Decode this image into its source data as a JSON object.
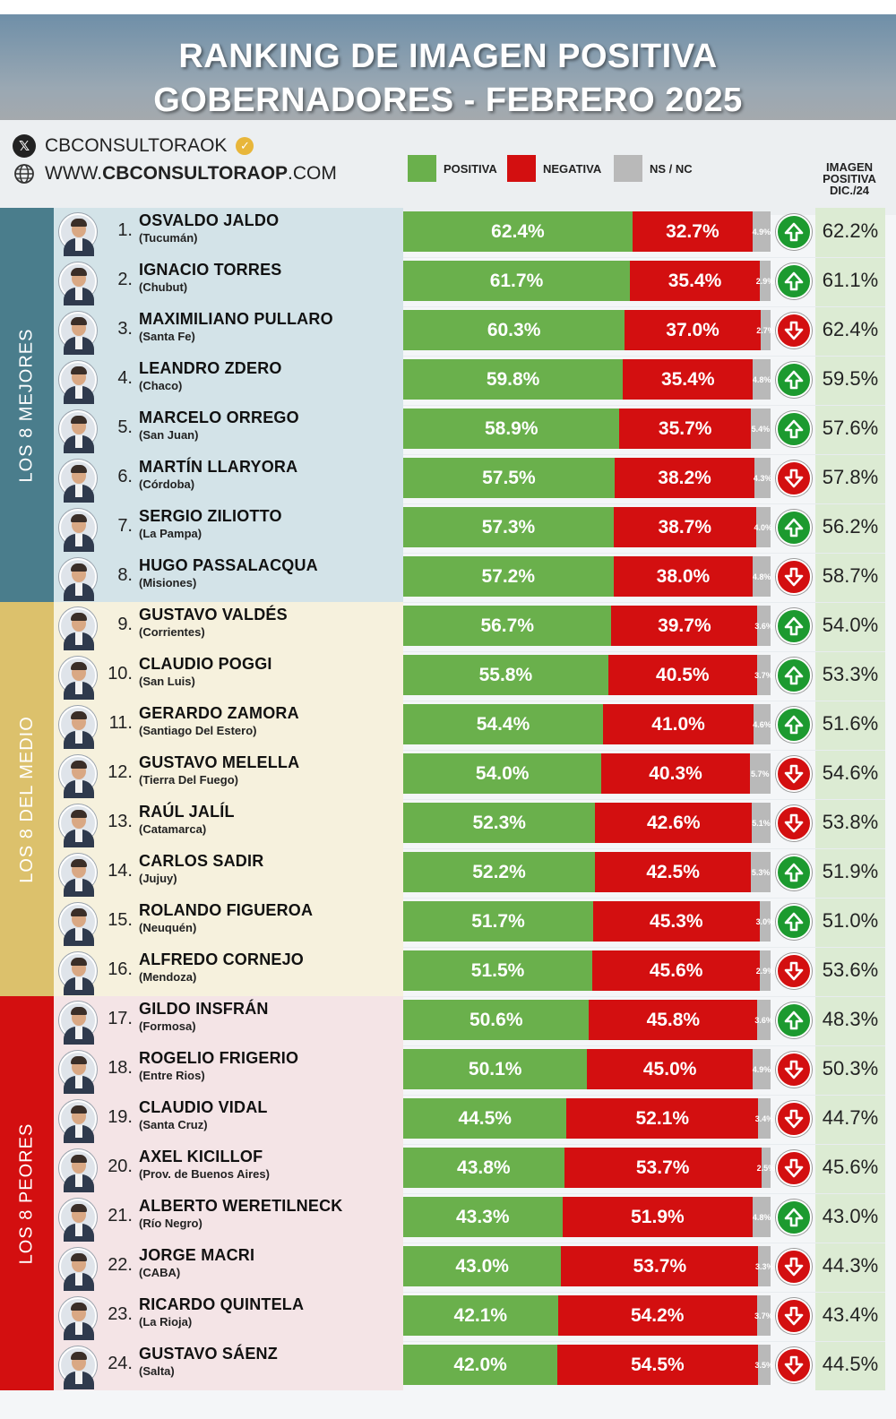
{
  "header": {
    "title_line1": "RANKING DE IMAGEN POSITIVA",
    "title_line2": "GOBERNADORES - FEBRERO 2025",
    "social_handle": "CBCONSULTORAOK",
    "website_prefix": "WWW.",
    "website_bold": "CBCONSULTORAOP",
    "website_suffix": ".COM"
  },
  "legend": {
    "positive": "POSITIVA",
    "negative": "NEGATIVA",
    "ns": "NS / NC"
  },
  "previous_header": [
    "IMAGEN",
    "POSITIVA",
    "DIC./24"
  ],
  "groups": [
    {
      "label": "LOS 8 MEJORES",
      "color": "#4a7d8c",
      "row_color": "#d3e3e8",
      "from": 0,
      "to": 8
    },
    {
      "label": "LOS 8 DEL MEDIO",
      "color": "#dcc16c",
      "row_color": "#f6f1dd",
      "from": 8,
      "to": 16
    },
    {
      "label": "LOS 8 PEORES",
      "color": "#d30f10",
      "row_color": "#f4e4e6",
      "from": 16,
      "to": 24
    }
  ],
  "colors": {
    "positive": "#6ab04c",
    "negative": "#d30f10",
    "ns": "#b9b9b9",
    "trend_up": "#1c9a2f",
    "trend_down": "#d30f10"
  },
  "chart_data": {
    "type": "bar",
    "stacked": true,
    "orientation": "horizontal",
    "title": "RANKING DE IMAGEN POSITIVA GOBERNADORES - FEBRERO 2025",
    "series_names": [
      "POSITIVA",
      "NEGATIVA",
      "NS / NC"
    ],
    "xlim": [
      0,
      100
    ],
    "rows": [
      {
        "rank": "1.",
        "name": "OSVALDO JALDO",
        "province": "(Tucumán)",
        "positive": 62.4,
        "positive_label": "62.4%",
        "negative": 32.7,
        "negative_label": "32.7%",
        "ns": 4.9,
        "ns_label": "4.9%",
        "trend": "up",
        "prev_label": "62.2%"
      },
      {
        "rank": "2.",
        "name": "IGNACIO TORRES",
        "province": "(Chubut)",
        "positive": 61.7,
        "positive_label": "61.7%",
        "negative": 35.4,
        "negative_label": "35.4%",
        "ns": 2.9,
        "ns_label": "2.9%",
        "trend": "up",
        "prev_label": "61.1%"
      },
      {
        "rank": "3.",
        "name": "MAXIMILIANO PULLARO",
        "province": "(Santa Fe)",
        "positive": 60.3,
        "positive_label": "60.3%",
        "negative": 37.0,
        "negative_label": "37.0%",
        "ns": 2.7,
        "ns_label": "2.7%",
        "trend": "down",
        "prev_label": "62.4%"
      },
      {
        "rank": "4.",
        "name": "LEANDRO ZDERO",
        "province": "(Chaco)",
        "positive": 59.8,
        "positive_label": "59.8%",
        "negative": 35.4,
        "negative_label": "35.4%",
        "ns": 4.8,
        "ns_label": "4.8%",
        "trend": "up",
        "prev_label": "59.5%"
      },
      {
        "rank": "5.",
        "name": "MARCELO ORREGO",
        "province": "(San Juan)",
        "positive": 58.9,
        "positive_label": "58.9%",
        "negative": 35.7,
        "negative_label": "35.7%",
        "ns": 5.4,
        "ns_label": "5.4%",
        "trend": "up",
        "prev_label": "57.6%"
      },
      {
        "rank": "6.",
        "name": "MARTÍN LLARYORA",
        "province": "(Córdoba)",
        "positive": 57.5,
        "positive_label": "57.5%",
        "negative": 38.2,
        "negative_label": "38.2%",
        "ns": 4.3,
        "ns_label": "4.3%",
        "trend": "down",
        "prev_label": "57.8%"
      },
      {
        "rank": "7.",
        "name": "SERGIO ZILIOTTO",
        "province": "(La Pampa)",
        "positive": 57.3,
        "positive_label": "57.3%",
        "negative": 38.7,
        "negative_label": "38.7%",
        "ns": 4.0,
        "ns_label": "4.0%",
        "trend": "up",
        "prev_label": "56.2%"
      },
      {
        "rank": "8.",
        "name": "HUGO PASSALACQUA",
        "province": "(Misiones)",
        "positive": 57.2,
        "positive_label": "57.2%",
        "negative": 38.0,
        "negative_label": "38.0%",
        "ns": 4.8,
        "ns_label": "4.8%",
        "trend": "down",
        "prev_label": "58.7%"
      },
      {
        "rank": "9.",
        "name": "GUSTAVO VALDÉS",
        "province": "(Corrientes)",
        "positive": 56.7,
        "positive_label": "56.7%",
        "negative": 39.7,
        "negative_label": "39.7%",
        "ns": 3.6,
        "ns_label": "3.6%",
        "trend": "up",
        "prev_label": "54.0%"
      },
      {
        "rank": "10.",
        "name": "CLAUDIO POGGI",
        "province": "(San Luis)",
        "positive": 55.8,
        "positive_label": "55.8%",
        "negative": 40.5,
        "negative_label": "40.5%",
        "ns": 3.7,
        "ns_label": "3.7%",
        "trend": "up",
        "prev_label": "53.3%"
      },
      {
        "rank": "11.",
        "name": "GERARDO ZAMORA",
        "province": "(Santiago Del Estero)",
        "positive": 54.4,
        "positive_label": "54.4%",
        "negative": 41.0,
        "negative_label": "41.0%",
        "ns": 4.6,
        "ns_label": "4.6%",
        "trend": "up",
        "prev_label": "51.6%"
      },
      {
        "rank": "12.",
        "name": "GUSTAVO MELELLA",
        "province": "(Tierra Del Fuego)",
        "positive": 54.0,
        "positive_label": "54.0%",
        "negative": 40.3,
        "negative_label": "40.3%",
        "ns": 5.7,
        "ns_label": "5.7%",
        "trend": "down",
        "prev_label": "54.6%"
      },
      {
        "rank": "13.",
        "name": "RAÚL JALÍL",
        "province": "(Catamarca)",
        "positive": 52.3,
        "positive_label": "52.3%",
        "negative": 42.6,
        "negative_label": "42.6%",
        "ns": 5.1,
        "ns_label": "5.1%",
        "trend": "down",
        "prev_label": "53.8%"
      },
      {
        "rank": "14.",
        "name": "CARLOS SADIR",
        "province": "(Jujuy)",
        "positive": 52.2,
        "positive_label": "52.2%",
        "negative": 42.5,
        "negative_label": "42.5%",
        "ns": 5.3,
        "ns_label": "5.3%",
        "trend": "up",
        "prev_label": "51.9%"
      },
      {
        "rank": "15.",
        "name": "ROLANDO FIGUEROA",
        "province": "(Neuquén)",
        "positive": 51.7,
        "positive_label": "51.7%",
        "negative": 45.3,
        "negative_label": "45.3%",
        "ns": 3.0,
        "ns_label": "3.0%",
        "trend": "up",
        "prev_label": "51.0%"
      },
      {
        "rank": "16.",
        "name": "ALFREDO CORNEJO",
        "province": "(Mendoza)",
        "positive": 51.5,
        "positive_label": "51.5%",
        "negative": 45.6,
        "negative_label": "45.6%",
        "ns": 2.9,
        "ns_label": "2.9%",
        "trend": "down",
        "prev_label": "53.6%"
      },
      {
        "rank": "17.",
        "name": "GILDO INSFRÁN",
        "province": "(Formosa)",
        "positive": 50.6,
        "positive_label": "50.6%",
        "negative": 45.8,
        "negative_label": "45.8%",
        "ns": 3.6,
        "ns_label": "3.6%",
        "trend": "up",
        "prev_label": "48.3%"
      },
      {
        "rank": "18.",
        "name": "ROGELIO FRIGERIO",
        "province": "(Entre Rios)",
        "positive": 50.1,
        "positive_label": "50.1%",
        "negative": 45.0,
        "negative_label": "45.0%",
        "ns": 4.9,
        "ns_label": "4.9%",
        "trend": "down",
        "prev_label": "50.3%"
      },
      {
        "rank": "19.",
        "name": "CLAUDIO VIDAL",
        "province": "(Santa Cruz)",
        "positive": 44.5,
        "positive_label": "44.5%",
        "negative": 52.1,
        "negative_label": "52.1%",
        "ns": 3.4,
        "ns_label": "3.4%",
        "trend": "down",
        "prev_label": "44.7%"
      },
      {
        "rank": "20.",
        "name": "AXEL KICILLOF",
        "province": "(Prov. de Buenos Aires)",
        "positive": 43.8,
        "positive_label": "43.8%",
        "negative": 53.7,
        "negative_label": "53.7%",
        "ns": 2.5,
        "ns_label": "2.5%",
        "trend": "down",
        "prev_label": "45.6%"
      },
      {
        "rank": "21.",
        "name": "ALBERTO WERETILNECK",
        "province": "(Río Negro)",
        "positive": 43.3,
        "positive_label": "43.3%",
        "negative": 51.9,
        "negative_label": "51.9%",
        "ns": 4.8,
        "ns_label": "4.8%",
        "trend": "up",
        "prev_label": "43.0%"
      },
      {
        "rank": "22.",
        "name": "JORGE MACRI",
        "province": "(CABA)",
        "positive": 43.0,
        "positive_label": "43.0%",
        "negative": 53.7,
        "negative_label": "53.7%",
        "ns": 3.3,
        "ns_label": "3.3%",
        "trend": "down",
        "prev_label": "44.3%"
      },
      {
        "rank": "23.",
        "name": "RICARDO QUINTELA",
        "province": "(La Rioja)",
        "positive": 42.1,
        "positive_label": "42.1%",
        "negative": 54.2,
        "negative_label": "54.2%",
        "ns": 3.7,
        "ns_label": "3.7%",
        "trend": "down",
        "prev_label": "43.4%"
      },
      {
        "rank": "24.",
        "name": "GUSTAVO SÁENZ",
        "province": "(Salta)",
        "positive": 42.0,
        "positive_label": "42.0%",
        "negative": 54.5,
        "negative_label": "54.5%",
        "ns": 3.5,
        "ns_label": "3.5%",
        "trend": "down",
        "prev_label": "44.5%"
      }
    ]
  }
}
